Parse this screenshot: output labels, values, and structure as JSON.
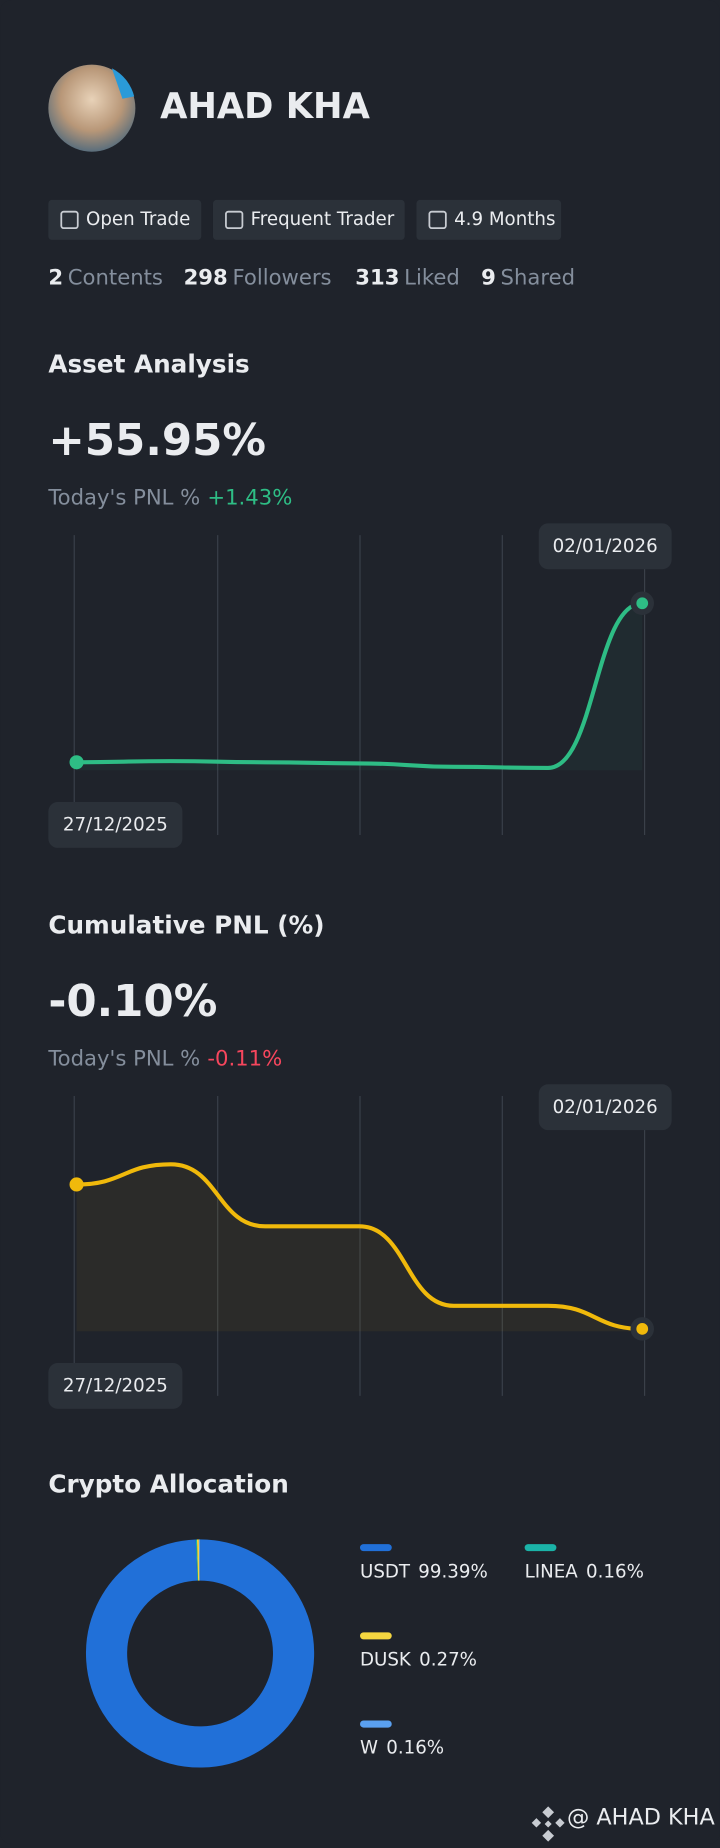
{
  "profile": {
    "name": "AHAD KHA",
    "tags": [
      "Open Trade",
      "Frequent Trader",
      "4.9 Months"
    ],
    "stats": [
      {
        "value": 2,
        "label": "Contents"
      },
      {
        "value": 298,
        "label": "Followers"
      },
      {
        "value": 313,
        "label": "Liked"
      },
      {
        "value": 9,
        "label": "Shared"
      }
    ]
  },
  "chart_data": [
    {
      "type": "line",
      "title": "Asset Analysis",
      "headline": "+55.95%",
      "headline_color": "#2ebd85",
      "today_label": "Today's PNL %",
      "today_value": "+1.43%",
      "categories": [
        "27/12/2025",
        null,
        null,
        null,
        null,
        null,
        "02/01/2026"
      ],
      "values": [
        0,
        0.4,
        0,
        -0.4,
        -1.6,
        -2,
        55.95
      ],
      "color": "#2ebd85"
    },
    {
      "type": "line",
      "title": "Cumulative PNL (%)",
      "headline": "-0.10%",
      "headline_color": "#f6465d",
      "today_label": "Today's PNL %",
      "today_value": "-0.11%",
      "categories": [
        "27/12/2025",
        null,
        null,
        null,
        null,
        null,
        "02/01/2026"
      ],
      "values": [
        0,
        0.014,
        -0.029,
        -0.029,
        -0.084,
        -0.084,
        -0.1
      ],
      "color": "#f0b90b"
    },
    {
      "type": "pie",
      "title": "Crypto Allocation",
      "categories": [
        "USDT",
        "LINEA",
        "DUSK",
        "W"
      ],
      "values": [
        99.39,
        0.16,
        0.27,
        0.16
      ],
      "value_labels": [
        "99.39%",
        "0.16%",
        "0.27%",
        "0.16%"
      ],
      "colors": [
        "#2170d8",
        "#1bb3a8",
        "#f5d640",
        "#5aa0f0"
      ]
    }
  ],
  "footer": "@ AHAD KHA"
}
